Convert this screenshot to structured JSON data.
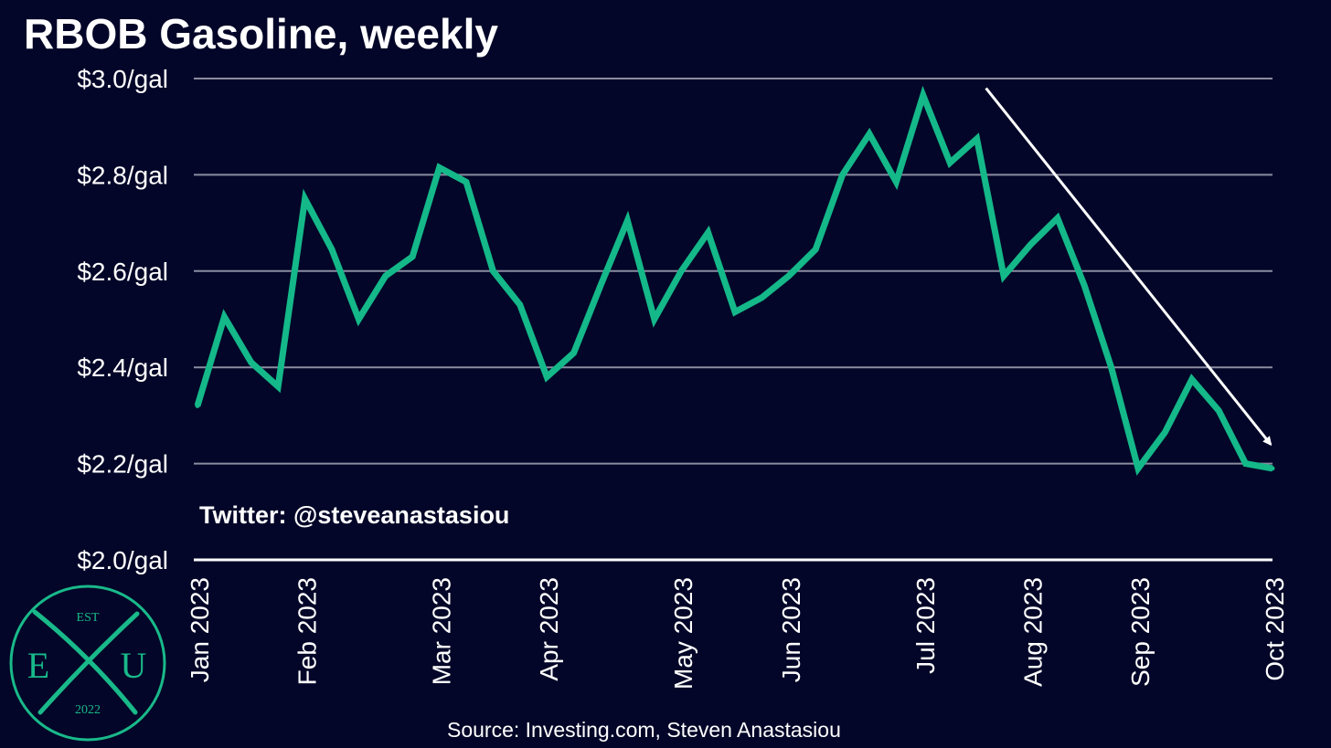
{
  "title": "RBOB Gasoline, weekly",
  "watermark": "Twitter: @steveanastasiou",
  "source": "Source: Investing.com, Steven Anastasiou",
  "logo": {
    "top": "EST",
    "left": "E",
    "right": "U",
    "bottom": "2022"
  },
  "colors": {
    "background": "#030628",
    "line": "#14b889",
    "grid": "#8a8ca0",
    "text": "#ffffff",
    "logo": "#19b98a"
  },
  "chart_data": {
    "type": "line",
    "title": "RBOB Gasoline, weekly",
    "xlabel": "",
    "ylabel": "",
    "ylim": [
      2.0,
      3.0
    ],
    "y_ticks": [
      2.0,
      2.2,
      2.4,
      2.6,
      2.8,
      3.0
    ],
    "y_tick_labels": [
      "$2.0/gal",
      "$2.2/gal",
      "$2.4/gal",
      "$2.6/gal",
      "$2.8/gal",
      "$3.0/gal"
    ],
    "x_tick_labels": [
      "Jan 2023",
      "Feb 2023",
      "Mar 2023",
      "Apr 2023",
      "May 2023",
      "Jun 2023",
      "Jul 2023",
      "Aug 2023",
      "Sep 2023",
      "Oct 2023"
    ],
    "x_tick_weeks": [
      0,
      4,
      9,
      13,
      18,
      22,
      27,
      31,
      35,
      40
    ],
    "grid": true,
    "series": [
      {
        "values": [
          2.32,
          2.505,
          2.41,
          2.36,
          2.75,
          2.645,
          2.5,
          2.59,
          2.63,
          2.815,
          2.785,
          2.6,
          2.53,
          2.38,
          2.43,
          2.57,
          2.705,
          2.5,
          2.6,
          2.68,
          2.515,
          2.545,
          2.59,
          2.645,
          2.8,
          2.885,
          2.785,
          2.965,
          2.825,
          2.875,
          2.59,
          2.655,
          2.71,
          2.57,
          2.4,
          2.19,
          2.265,
          2.375,
          2.31,
          2.2,
          2.19
        ]
      }
    ],
    "annotations": [
      {
        "type": "arrow",
        "from": {
          "week": 29,
          "value": 2.98
        },
        "to": {
          "week": 40,
          "value": 2.24
        }
      }
    ]
  }
}
